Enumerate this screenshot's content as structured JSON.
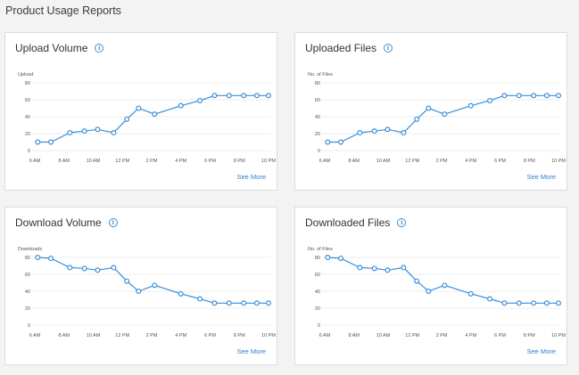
{
  "page": {
    "title": "Product Usage Reports"
  },
  "colors": {
    "line": "#3a8fd6",
    "grid": "#ececec",
    "axis_text": "#555555",
    "link": "#2c7fd0"
  },
  "cards": [
    {
      "title": "Upload Volume",
      "info_icon": "i",
      "see_more": "See More"
    },
    {
      "title": "Uploaded Files",
      "info_icon": "i",
      "see_more": "See More"
    },
    {
      "title": "Download Volume",
      "info_icon": "i",
      "see_more": "See More"
    },
    {
      "title": "Downloaded Files",
      "info_icon": "i",
      "see_more": "See More"
    }
  ],
  "chart_data": [
    {
      "type": "line",
      "title": "Upload Volume",
      "ylabel": "Upload",
      "ylim": [
        0,
        80
      ],
      "yticks": [
        0,
        20,
        40,
        60,
        80
      ],
      "xlim": [
        6,
        22
      ],
      "xticks": [
        6,
        8,
        10,
        12,
        14,
        16,
        18,
        20,
        22
      ],
      "xtick_labels": [
        "6 AM",
        "8 AM",
        "10 AM",
        "12 PM",
        "2 PM",
        "4 PM",
        "6 PM",
        "8 PM",
        "10 PM"
      ],
      "x": [
        6.2,
        7.1,
        8.4,
        9.4,
        10.3,
        11.4,
        12.3,
        13.1,
        14.2,
        16.0,
        17.3,
        18.3,
        19.3,
        20.3,
        21.2,
        22.0
      ],
      "values": [
        10,
        10,
        21,
        23,
        25,
        21,
        37,
        50,
        43,
        53,
        59,
        65,
        65,
        65,
        65,
        65
      ]
    },
    {
      "type": "line",
      "title": "Uploaded Files",
      "ylabel": "No. of Files",
      "ylim": [
        0,
        80
      ],
      "yticks": [
        0,
        20,
        40,
        60,
        80
      ],
      "xlim": [
        6,
        22
      ],
      "xticks": [
        6,
        8,
        10,
        12,
        14,
        16,
        18,
        20,
        22
      ],
      "xtick_labels": [
        "6 AM",
        "8 AM",
        "10 AM",
        "12 PM",
        "2 PM",
        "4 PM",
        "6 PM",
        "8 PM",
        "10 PM"
      ],
      "x": [
        6.2,
        7.1,
        8.4,
        9.4,
        10.3,
        11.4,
        12.3,
        13.1,
        14.2,
        16.0,
        17.3,
        18.3,
        19.3,
        20.3,
        21.2,
        22.0
      ],
      "values": [
        10,
        10,
        21,
        23,
        25,
        21,
        37,
        50,
        43,
        53,
        59,
        65,
        65,
        65,
        65,
        65
      ]
    },
    {
      "type": "line",
      "title": "Download Volume",
      "ylabel": "Downloads",
      "ylim": [
        0,
        80
      ],
      "yticks": [
        0,
        20,
        40,
        60,
        80
      ],
      "xlim": [
        6,
        22
      ],
      "xticks": [
        6,
        8,
        10,
        12,
        14,
        16,
        18,
        20,
        22
      ],
      "xtick_labels": [
        "6 AM",
        "8 AM",
        "10 AM",
        "12 PM",
        "2 PM",
        "4 PM",
        "6 PM",
        "8 PM",
        "10 PM"
      ],
      "x": [
        6.2,
        7.1,
        8.4,
        9.4,
        10.3,
        11.4,
        12.3,
        13.1,
        14.2,
        16.0,
        17.3,
        18.3,
        19.3,
        20.3,
        21.2,
        22.0
      ],
      "values": [
        80,
        79,
        68,
        67,
        65,
        68,
        52,
        40,
        47,
        37,
        31,
        26,
        26,
        26,
        26,
        26
      ]
    },
    {
      "type": "line",
      "title": "Downloaded Files",
      "ylabel": "No. of Files",
      "ylim": [
        0,
        80
      ],
      "yticks": [
        0,
        20,
        40,
        60,
        80
      ],
      "xlim": [
        6,
        22
      ],
      "xticks": [
        6,
        8,
        10,
        12,
        14,
        16,
        18,
        20,
        22
      ],
      "xtick_labels": [
        "6 AM",
        "8 AM",
        "10 AM",
        "12 PM",
        "2 PM",
        "4 PM",
        "6 PM",
        "8 PM",
        "10 PM"
      ],
      "x": [
        6.2,
        7.1,
        8.4,
        9.4,
        10.3,
        11.4,
        12.3,
        13.1,
        14.2,
        16.0,
        17.3,
        18.3,
        19.3,
        20.3,
        21.2,
        22.0
      ],
      "values": [
        80,
        79,
        68,
        67,
        65,
        68,
        52,
        40,
        47,
        37,
        31,
        26,
        26,
        26,
        26,
        26
      ]
    }
  ]
}
